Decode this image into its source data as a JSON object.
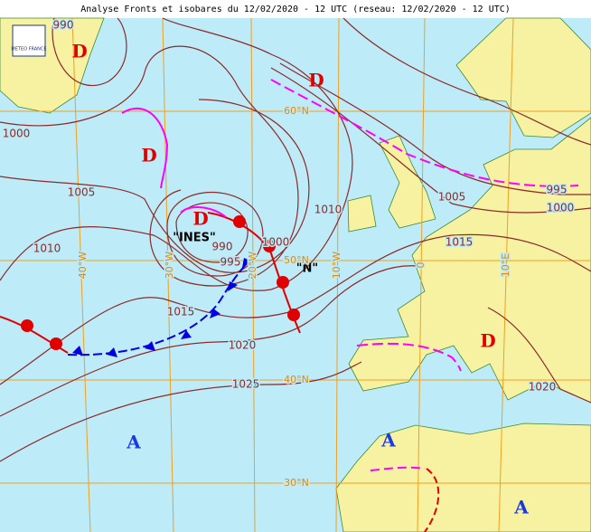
{
  "header": {
    "title": "Analyse Fronts et isobares du 12/02/2020 - 12 UTC (reseau: 12/02/2020 - 12 UTC)",
    "logo": "METEO FRANCE"
  },
  "isobar_labels": [
    990,
    1000,
    1005,
    1010,
    990,
    995,
    1000,
    1010,
    1015,
    1020,
    1025,
    1005,
    1015,
    995,
    1000,
    1020
  ],
  "centers": [
    "D",
    "D",
    "D",
    "D",
    "D",
    "A",
    "A",
    "A"
  ],
  "storm_names": [
    "\"INES\"",
    "\"N\""
  ],
  "latitudes": [
    "60°N",
    "50°N",
    "40°N",
    "30°N"
  ],
  "longitudes": [
    "40°W",
    "30°W",
    "20°W",
    "10°W",
    "0",
    "10°E"
  ]
}
